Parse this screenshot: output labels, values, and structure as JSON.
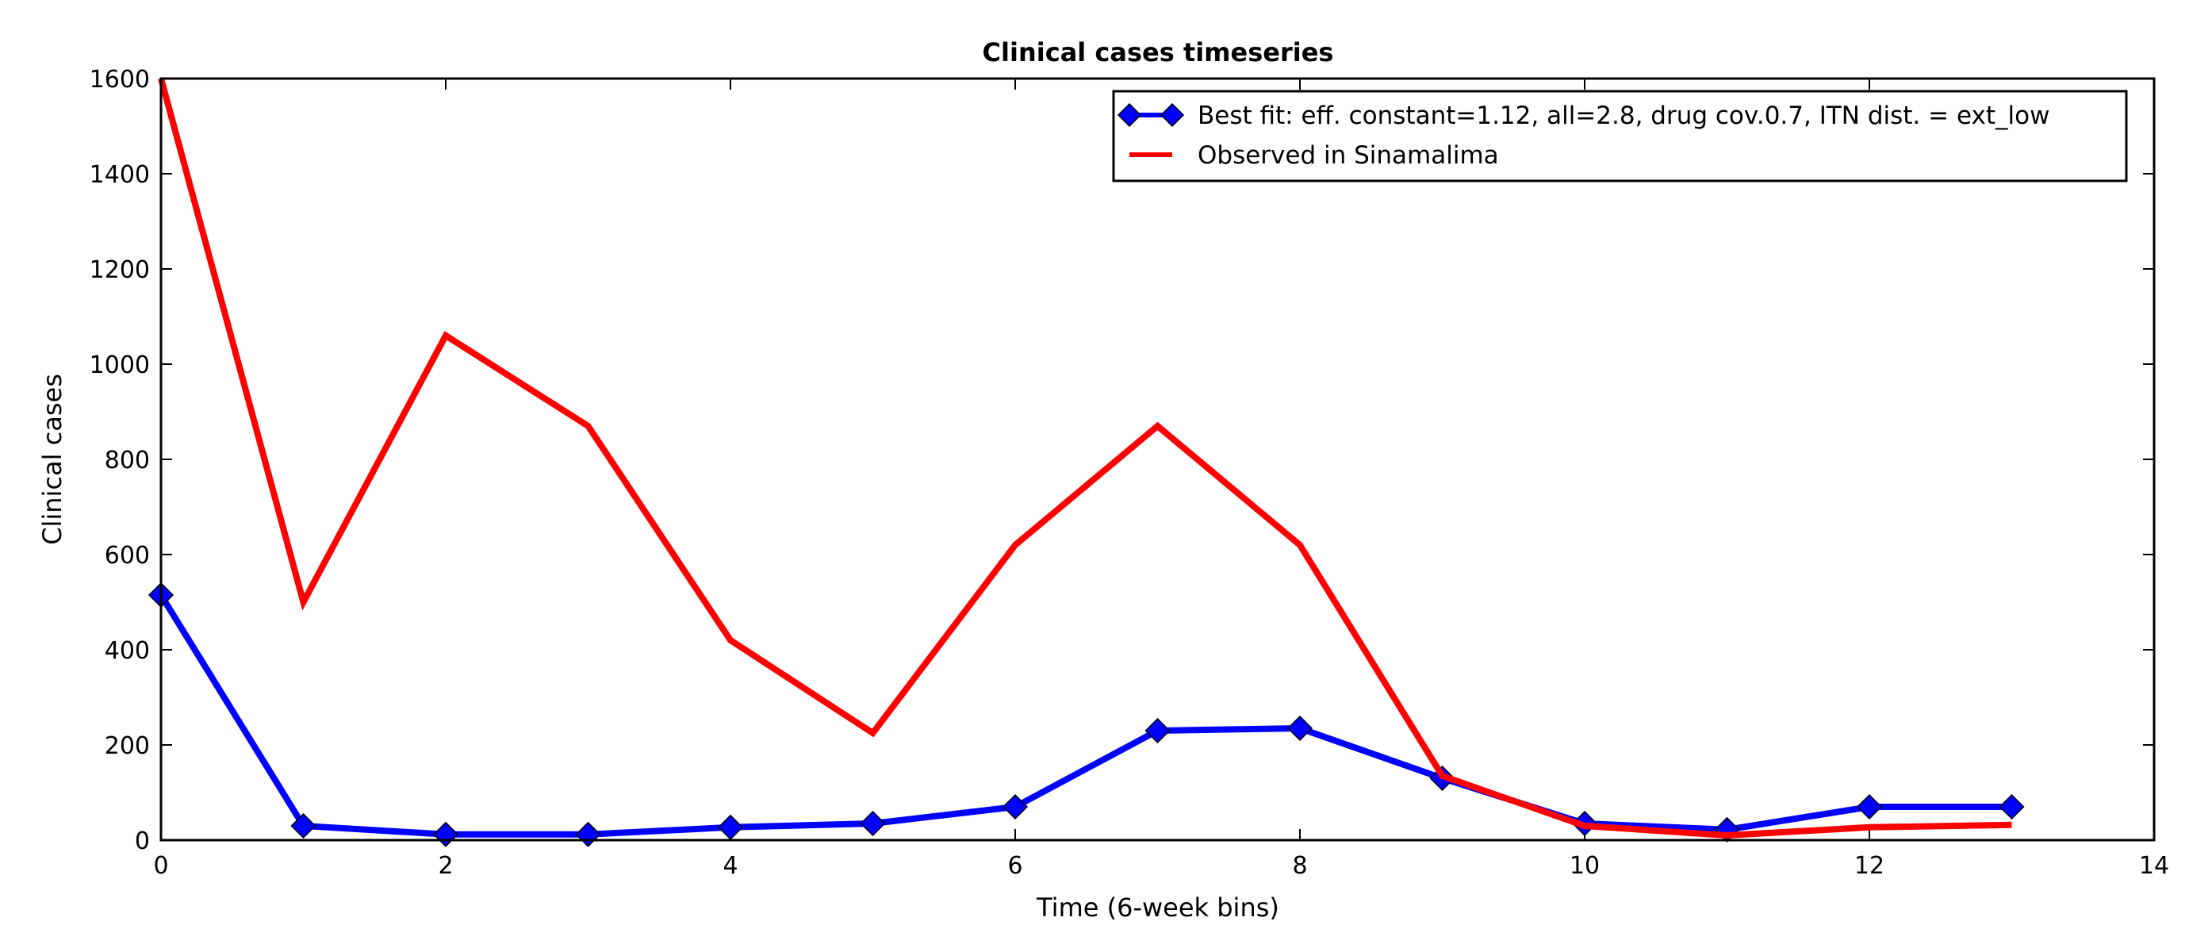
{
  "chart_data": {
    "type": "line",
    "title": "Clinical cases timeseries",
    "xlabel": "Time (6-week bins)",
    "ylabel": "Clinical cases",
    "xlim": [
      0,
      14
    ],
    "ylim": [
      0,
      1600
    ],
    "xticks": [
      0,
      2,
      4,
      6,
      8,
      10,
      12,
      14
    ],
    "yticks": [
      0,
      200,
      400,
      600,
      800,
      1000,
      1200,
      1400,
      1600
    ],
    "grid": false,
    "legend_position": "top-right",
    "series": [
      {
        "name": "Best fit: eff. constant=1.12, all=2.8, drug cov.0.7, ITN dist. = ext_low",
        "color": "#0000ff",
        "marker": "diamond",
        "x": [
          0,
          1,
          2,
          3,
          4,
          5,
          6,
          7,
          8,
          9,
          10,
          11,
          12,
          13
        ],
        "y": [
          515,
          30,
          12,
          12,
          27,
          35,
          70,
          230,
          235,
          130,
          35,
          22,
          70,
          70
        ]
      },
      {
        "name": "Observed in Sinamalima",
        "color": "#ff0000",
        "marker": "none",
        "x": [
          0,
          1,
          2,
          3,
          4,
          5,
          6,
          7,
          8,
          9,
          10,
          11,
          12,
          13
        ],
        "y": [
          1600,
          500,
          1060,
          870,
          420,
          225,
          620,
          870,
          620,
          135,
          30,
          10,
          27,
          32
        ]
      }
    ]
  }
}
